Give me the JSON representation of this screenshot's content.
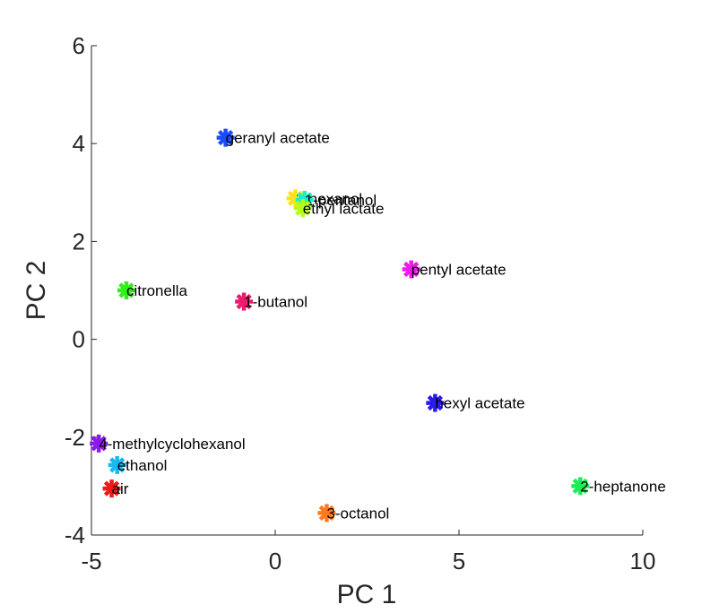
{
  "chart_data": {
    "type": "scatter",
    "title": "",
    "xlabel": "PC 1",
    "ylabel": "PC 2",
    "xlim": [
      -5,
      10
    ],
    "ylim": [
      -4,
      6
    ],
    "xticks": [
      -5,
      0,
      5,
      10
    ],
    "yticks": [
      -4,
      -2,
      0,
      2,
      4,
      6
    ],
    "xtick_labels": [
      "-5",
      "0",
      "5",
      "10"
    ],
    "ytick_labels": [
      "-4",
      "-2",
      "0",
      "2",
      "4",
      "6"
    ],
    "grid": false,
    "marker": "asterisk",
    "points": [
      {
        "label": "geranyl acetate",
        "x": -1.35,
        "y": 4.12,
        "color": "#1a4cff"
      },
      {
        "label": "1-hexanol",
        "x": 0.55,
        "y": 2.88,
        "color": "#ffe11a"
      },
      {
        "label": "1-pentanol",
        "x": 0.8,
        "y": 2.85,
        "color": "#1aedc7"
      },
      {
        "label": "ethyl lactate",
        "x": 0.75,
        "y": 2.68,
        "color": "#b3ff1a"
      },
      {
        "label": "pentyl acetate",
        "x": 3.7,
        "y": 1.43,
        "color": "#ee1aee"
      },
      {
        "label": "citronella",
        "x": -4.05,
        "y": 1.0,
        "color": "#33ee1a"
      },
      {
        "label": "1-butanol",
        "x": -0.85,
        "y": 0.77,
        "color": "#ee1a6e"
      },
      {
        "label": "hexyl acetate",
        "x": 4.35,
        "y": -1.3,
        "color": "#2a1aee"
      },
      {
        "label": "4-methylcyclohexanol",
        "x": -4.8,
        "y": -2.13,
        "color": "#8c1aee"
      },
      {
        "label": "ethanol",
        "x": -4.3,
        "y": -2.57,
        "color": "#1ab8ee"
      },
      {
        "label": "air",
        "x": -4.45,
        "y": -3.05,
        "color": "#ee1a1a"
      },
      {
        "label": "2-heptanone",
        "x": 8.3,
        "y": -3.0,
        "color": "#1aee55"
      },
      {
        "label": "3-octanol",
        "x": 1.4,
        "y": -3.55,
        "color": "#ff7a1a"
      }
    ]
  }
}
